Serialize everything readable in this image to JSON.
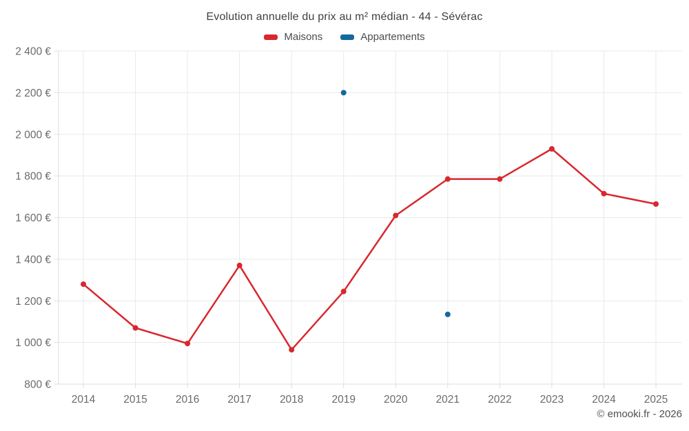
{
  "title": "Evolution annuelle du prix au m² médian - 44 - Sévérac",
  "legend": {
    "items": [
      {
        "label": "Maisons",
        "color": "#d7282f"
      },
      {
        "label": "Appartements",
        "color": "#16689e"
      }
    ]
  },
  "footer": {
    "credit": "© emooki.fr - 2026"
  },
  "chart_data": {
    "type": "line",
    "title": "Evolution annuelle du prix au m² médian - 44 - Sévérac",
    "categories": [
      "2014",
      "2015",
      "2016",
      "2017",
      "2018",
      "2019",
      "2020",
      "2021",
      "2022",
      "2023",
      "2024",
      "2025"
    ],
    "series": [
      {
        "name": "Maisons",
        "color": "#d7282f",
        "mode": "line+markers",
        "values": [
          1280,
          1070,
          995,
          1370,
          965,
          1245,
          1610,
          1785,
          1785,
          1930,
          1715,
          1665
        ]
      },
      {
        "name": "Appartements",
        "color": "#16689e",
        "mode": "markers",
        "values": [
          null,
          null,
          null,
          null,
          null,
          2200,
          null,
          1135,
          null,
          null,
          null,
          null
        ]
      }
    ],
    "xlabel": "",
    "ylabel": "",
    "ylim": [
      800,
      2400
    ],
    "ytick_step": 200,
    "ytick_suffix": " €",
    "grid": true,
    "legend_position": "top",
    "grid_color": "#e9e9e9",
    "axis_color": "#dedede",
    "tick_label_color": "#6a6a6a"
  }
}
